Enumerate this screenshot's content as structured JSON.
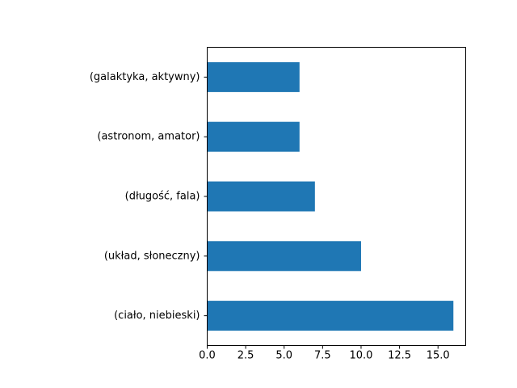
{
  "chart_data": {
    "type": "bar",
    "orientation": "horizontal",
    "categories": [
      "(ciało, niebieski)",
      "(układ, słoneczny)",
      "(długość, fala)",
      "(astronom, amator)",
      "(galaktyka, aktywny)"
    ],
    "values": [
      16,
      10,
      7,
      6,
      6
    ],
    "xlim": [
      0,
      16.8
    ],
    "xticks": [
      "0.0",
      "2.5",
      "5.0",
      "7.5",
      "10.0",
      "12.5",
      "15.0"
    ],
    "title": "",
    "xlabel": "",
    "ylabel": "",
    "grid": false,
    "bar_color": "#1f77b4"
  }
}
